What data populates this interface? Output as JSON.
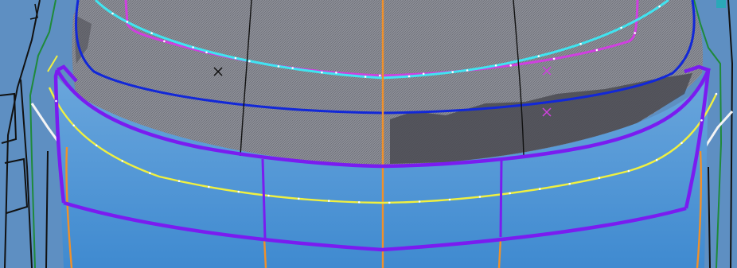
{
  "viewport": {
    "background_color": "#5e8fc2",
    "surface_color": "#3f8ad0",
    "surface_highlight_color": "#6aa6dc",
    "glass_color": "#8d8f98",
    "glass_dark_color": "#4a4b52"
  },
  "curve_colors": {
    "boundary_purple": "#7a1cf0",
    "glass_outline_blue": "#1228d8",
    "magenta": "#d040e0",
    "cyan": "#40e4f0",
    "yellow": "#f0f040",
    "orange": "#f0902a",
    "green": "#1f8a3a",
    "black": "#111111",
    "white": "#f4f4f4"
  },
  "markers": {
    "black_point": "black-cross-marker",
    "magenta_points": "magenta-cross-marker"
  }
}
